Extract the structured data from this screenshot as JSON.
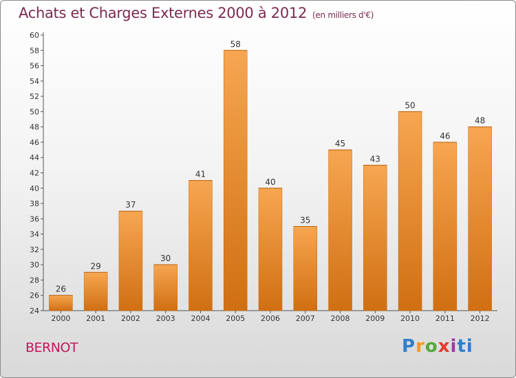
{
  "header": {
    "title": "Achats et Charges Externes 2000 à 2012",
    "unit": "(en milliers d'€)"
  },
  "footer": {
    "place": "BERNOT",
    "logo_text": "Proxiti"
  },
  "colors": {
    "bar_light": "#f7a651",
    "bar_dark": "#d06f12",
    "title": "#7a2a50",
    "place": "#c2175b"
  },
  "chart_data": {
    "type": "bar",
    "title": "Achats et Charges Externes 2000 à 2012",
    "subtitle": "(en milliers d'€)",
    "categories": [
      "2000",
      "2001",
      "2002",
      "2003",
      "2004",
      "2005",
      "2006",
      "2007",
      "2008",
      "2009",
      "2010",
      "2011",
      "2012"
    ],
    "values": [
      26,
      29,
      37,
      30,
      41,
      58,
      40,
      35,
      45,
      43,
      50,
      46,
      48
    ],
    "ylim": [
      24,
      60
    ],
    "yticks": [
      24,
      26,
      28,
      30,
      32,
      34,
      36,
      38,
      40,
      42,
      44,
      46,
      48,
      50,
      52,
      54,
      56,
      58,
      60
    ],
    "grid": false,
    "legend": "none"
  }
}
